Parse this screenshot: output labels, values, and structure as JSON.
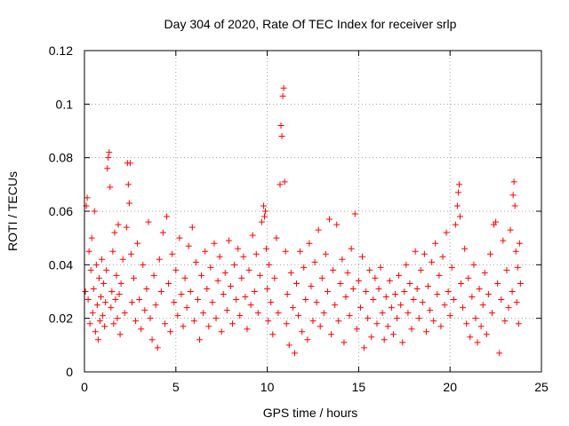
{
  "chart_data": {
    "type": "scatter",
    "title": "Day 304 of 2020, Rate Of TEC Index for receiver srlp",
    "xlabel": "GPS time / hours",
    "ylabel": "ROTI / TECUs",
    "xlim": [
      0,
      25
    ],
    "ylim": [
      0,
      0.12
    ],
    "x_ticks": [
      0,
      5,
      10,
      15,
      20,
      25
    ],
    "x_tick_labels": [
      "0",
      "5",
      "10",
      "15",
      "20",
      "25"
    ],
    "y_ticks": [
      0,
      0.02,
      0.04,
      0.06,
      0.08,
      0.1,
      0.12
    ],
    "y_tick_labels": [
      "0",
      "0.02",
      "0.04",
      "0.06",
      "0.08",
      "0.1",
      "0.12"
    ],
    "grid": true,
    "marker": "+",
    "color": "#ff0000",
    "series": [
      {
        "name": "ROTI",
        "points": [
          [
            0.05,
            0.03
          ],
          [
            0.1,
            0.062
          ],
          [
            0.15,
            0.065
          ],
          [
            0.2,
            0.027
          ],
          [
            0.25,
            0.045
          ],
          [
            0.3,
            0.018
          ],
          [
            0.35,
            0.038
          ],
          [
            0.4,
            0.05
          ],
          [
            0.45,
            0.022
          ],
          [
            0.5,
            0.031
          ],
          [
            0.55,
            0.06
          ],
          [
            0.6,
            0.015
          ],
          [
            0.65,
            0.04
          ],
          [
            0.7,
            0.025
          ],
          [
            0.75,
            0.012
          ],
          [
            0.8,
            0.035
          ],
          [
            0.85,
            0.019
          ],
          [
            0.9,
            0.028
          ],
          [
            0.95,
            0.042
          ],
          [
            1.0,
            0.021
          ],
          [
            1.05,
            0.033
          ],
          [
            1.1,
            0.017
          ],
          [
            1.15,
            0.026
          ],
          [
            1.2,
            0.038
          ],
          [
            1.25,
            0.076
          ],
          [
            1.3,
            0.08
          ],
          [
            1.35,
            0.082
          ],
          [
            1.4,
            0.069
          ],
          [
            1.45,
            0.024
          ],
          [
            1.5,
            0.03
          ],
          [
            1.55,
            0.045
          ],
          [
            1.6,
            0.018
          ],
          [
            1.65,
            0.052
          ],
          [
            1.7,
            0.027
          ],
          [
            1.75,
            0.036
          ],
          [
            1.8,
            0.02
          ],
          [
            1.85,
            0.055
          ],
          [
            1.9,
            0.029
          ],
          [
            1.95,
            0.014
          ],
          [
            2.0,
            0.033
          ],
          [
            2.1,
            0.042
          ],
          [
            2.2,
            0.022
          ],
          [
            2.3,
            0.054
          ],
          [
            2.35,
            0.078
          ],
          [
            2.4,
            0.07
          ],
          [
            2.45,
            0.063
          ],
          [
            2.5,
            0.078
          ],
          [
            2.55,
            0.044
          ],
          [
            2.6,
            0.026
          ],
          [
            2.7,
            0.035
          ],
          [
            2.8,
            0.019
          ],
          [
            2.9,
            0.048
          ],
          [
            3.0,
            0.027
          ],
          [
            3.1,
            0.016
          ],
          [
            3.2,
            0.04
          ],
          [
            3.3,
            0.023
          ],
          [
            3.4,
            0.031
          ],
          [
            3.5,
            0.056
          ],
          [
            3.6,
            0.02
          ],
          [
            3.7,
            0.012
          ],
          [
            3.8,
            0.036
          ],
          [
            3.9,
            0.025
          ],
          [
            4.0,
            0.009
          ],
          [
            4.1,
            0.042
          ],
          [
            4.2,
            0.03
          ],
          [
            4.3,
            0.052
          ],
          [
            4.4,
            0.018
          ],
          [
            4.5,
            0.058
          ],
          [
            4.6,
            0.033
          ],
          [
            4.7,
            0.015
          ],
          [
            4.8,
            0.044
          ],
          [
            4.9,
            0.026
          ],
          [
            5.0,
            0.038
          ],
          [
            5.1,
            0.021
          ],
          [
            5.2,
            0.05
          ],
          [
            5.3,
            0.029
          ],
          [
            5.4,
            0.017
          ],
          [
            5.5,
            0.035
          ],
          [
            5.6,
            0.024
          ],
          [
            5.7,
            0.047
          ],
          [
            5.8,
            0.03
          ],
          [
            5.9,
            0.054
          ],
          [
            6.0,
            0.019
          ],
          [
            6.1,
            0.041
          ],
          [
            6.2,
            0.027
          ],
          [
            6.3,
            0.012
          ],
          [
            6.4,
            0.036
          ],
          [
            6.5,
            0.022
          ],
          [
            6.6,
            0.045
          ],
          [
            6.7,
            0.031
          ],
          [
            6.8,
            0.017
          ],
          [
            6.9,
            0.039
          ],
          [
            7.0,
            0.026
          ],
          [
            7.1,
            0.048
          ],
          [
            7.2,
            0.02
          ],
          [
            7.3,
            0.034
          ],
          [
            7.4,
            0.043
          ],
          [
            7.5,
            0.015
          ],
          [
            7.6,
            0.029
          ],
          [
            7.7,
            0.037
          ],
          [
            7.8,
            0.023
          ],
          [
            7.9,
            0.049
          ],
          [
            8.0,
            0.032
          ],
          [
            8.1,
            0.018
          ],
          [
            8.2,
            0.04
          ],
          [
            8.3,
            0.027
          ],
          [
            8.4,
            0.046
          ],
          [
            8.5,
            0.021
          ],
          [
            8.6,
            0.035
          ],
          [
            8.7,
            0.043
          ],
          [
            8.8,
            0.028
          ],
          [
            8.9,
            0.016
          ],
          [
            9.0,
            0.038
          ],
          [
            9.1,
            0.025
          ],
          [
            9.2,
            0.051
          ],
          [
            9.3,
            0.03
          ],
          [
            9.4,
            0.044
          ],
          [
            9.5,
            0.022
          ],
          [
            9.6,
            0.036
          ],
          [
            9.7,
            0.056
          ],
          [
            9.8,
            0.062
          ],
          [
            9.85,
            0.058
          ],
          [
            9.9,
            0.06
          ],
          [
            9.95,
            0.046
          ],
          [
            10.0,
            0.031
          ],
          [
            10.05,
            0.019
          ],
          [
            10.1,
            0.04
          ],
          [
            10.2,
            0.026
          ],
          [
            10.3,
            0.014
          ],
          [
            10.4,
            0.035
          ],
          [
            10.5,
            0.05
          ],
          [
            10.6,
            0.022
          ],
          [
            10.7,
            0.07
          ],
          [
            10.75,
            0.092
          ],
          [
            10.8,
            0.088
          ],
          [
            10.85,
            0.103
          ],
          [
            10.9,
            0.106
          ],
          [
            10.95,
            0.071
          ],
          [
            11.0,
            0.045
          ],
          [
            11.05,
            0.018
          ],
          [
            11.1,
            0.029
          ],
          [
            11.2,
            0.01
          ],
          [
            11.3,
            0.037
          ],
          [
            11.4,
            0.024
          ],
          [
            11.5,
            0.007
          ],
          [
            11.6,
            0.033
          ],
          [
            11.7,
            0.021
          ],
          [
            11.8,
            0.045
          ],
          [
            11.9,
            0.015
          ],
          [
            12.0,
            0.039
          ],
          [
            12.1,
            0.027
          ],
          [
            12.2,
            0.012
          ],
          [
            12.3,
            0.048
          ],
          [
            12.4,
            0.032
          ],
          [
            12.5,
            0.019
          ],
          [
            12.6,
            0.041
          ],
          [
            12.7,
            0.026
          ],
          [
            12.8,
            0.053
          ],
          [
            12.9,
            0.017
          ],
          [
            13.0,
            0.035
          ],
          [
            13.1,
            0.022
          ],
          [
            13.2,
            0.044
          ],
          [
            13.3,
            0.03
          ],
          [
            13.4,
            0.057
          ],
          [
            13.5,
            0.014
          ],
          [
            13.6,
            0.038
          ],
          [
            13.7,
            0.025
          ],
          [
            13.8,
            0.055
          ],
          [
            13.9,
            0.019
          ],
          [
            14.0,
            0.033
          ],
          [
            14.1,
            0.042
          ],
          [
            14.2,
            0.011
          ],
          [
            14.3,
            0.028
          ],
          [
            14.4,
            0.037
          ],
          [
            14.5,
            0.021
          ],
          [
            14.6,
            0.046
          ],
          [
            14.7,
            0.031
          ],
          [
            14.8,
            0.059
          ],
          [
            14.9,
            0.016
          ],
          [
            15.0,
            0.034
          ],
          [
            15.1,
            0.024
          ],
          [
            15.2,
            0.043
          ],
          [
            15.3,
            0.009
          ],
          [
            15.4,
            0.03
          ],
          [
            15.5,
            0.02
          ],
          [
            15.6,
            0.038
          ],
          [
            15.7,
            0.013
          ],
          [
            15.8,
            0.027
          ],
          [
            15.9,
            0.035
          ],
          [
            16.0,
            0.018
          ],
          [
            16.1,
            0.031
          ],
          [
            16.2,
            0.039
          ],
          [
            16.3,
            0.022
          ],
          [
            16.4,
            0.012
          ],
          [
            16.5,
            0.028
          ],
          [
            16.6,
            0.017
          ],
          [
            16.7,
            0.034
          ],
          [
            16.8,
            0.024
          ],
          [
            16.9,
            0.014
          ],
          [
            17.0,
            0.029
          ],
          [
            17.1,
            0.02
          ],
          [
            17.2,
            0.036
          ],
          [
            17.3,
            0.025
          ],
          [
            17.4,
            0.011
          ],
          [
            17.5,
            0.03
          ],
          [
            17.6,
            0.04
          ],
          [
            17.7,
            0.022
          ],
          [
            17.8,
            0.033
          ],
          [
            17.9,
            0.016
          ],
          [
            18.0,
            0.027
          ],
          [
            18.1,
            0.045
          ],
          [
            18.2,
            0.031
          ],
          [
            18.3,
            0.02
          ],
          [
            18.4,
            0.038
          ],
          [
            18.5,
            0.026
          ],
          [
            18.6,
            0.044
          ],
          [
            18.7,
            0.015
          ],
          [
            18.8,
            0.032
          ],
          [
            18.9,
            0.023
          ],
          [
            19.0,
            0.041
          ],
          [
            19.1,
            0.019
          ],
          [
            19.2,
            0.048
          ],
          [
            19.3,
            0.029
          ],
          [
            19.4,
            0.036
          ],
          [
            19.5,
            0.017
          ],
          [
            19.6,
            0.043
          ],
          [
            19.7,
            0.025
          ],
          [
            19.8,
            0.052
          ],
          [
            19.9,
            0.03
          ],
          [
            20.0,
            0.021
          ],
          [
            20.1,
            0.039
          ],
          [
            20.2,
            0.027
          ],
          [
            20.3,
            0.055
          ],
          [
            20.4,
            0.062
          ],
          [
            20.45,
            0.067
          ],
          [
            20.5,
            0.07
          ],
          [
            20.55,
            0.058
          ],
          [
            20.6,
            0.033
          ],
          [
            20.7,
            0.024
          ],
          [
            20.8,
            0.046
          ],
          [
            20.9,
            0.018
          ],
          [
            21.0,
            0.035
          ],
          [
            21.1,
            0.013
          ],
          [
            21.2,
            0.028
          ],
          [
            21.3,
            0.04
          ],
          [
            21.4,
            0.02
          ],
          [
            21.5,
            0.011
          ],
          [
            21.6,
            0.031
          ],
          [
            21.7,
            0.017
          ],
          [
            21.8,
            0.025
          ],
          [
            21.9,
            0.037
          ],
          [
            22.0,
            0.014
          ],
          [
            22.1,
            0.029
          ],
          [
            22.2,
            0.044
          ],
          [
            22.3,
            0.022
          ],
          [
            22.4,
            0.055
          ],
          [
            22.5,
            0.056
          ],
          [
            22.6,
            0.033
          ],
          [
            22.7,
            0.007
          ],
          [
            22.8,
            0.027
          ],
          [
            22.9,
            0.049
          ],
          [
            23.0,
            0.019
          ],
          [
            23.1,
            0.038
          ],
          [
            23.2,
            0.024
          ],
          [
            23.3,
            0.053
          ],
          [
            23.4,
            0.03
          ],
          [
            23.45,
            0.066
          ],
          [
            23.5,
            0.071
          ],
          [
            23.55,
            0.062
          ],
          [
            23.6,
            0.045
          ],
          [
            23.65,
            0.026
          ],
          [
            23.7,
            0.039
          ],
          [
            23.75,
            0.018
          ],
          [
            23.8,
            0.048
          ],
          [
            23.85,
            0.033
          ]
        ]
      }
    ]
  }
}
